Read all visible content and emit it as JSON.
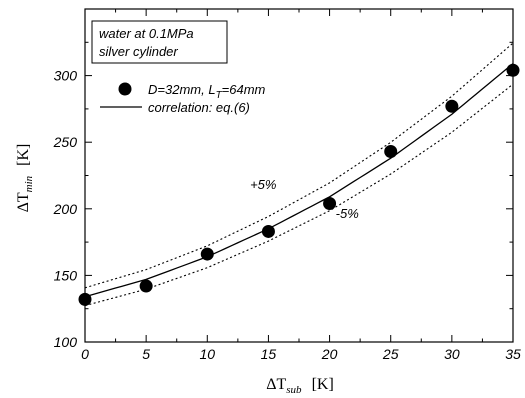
{
  "chart_data": {
    "type": "scatter",
    "xlabel": {
      "symbol": "ΔT",
      "sub": "sub",
      "unit": "[K]"
    },
    "ylabel": {
      "symbol": "ΔT",
      "sub": "min",
      "unit": "[K]"
    },
    "xlim": [
      0,
      35
    ],
    "ylim": [
      100,
      350
    ],
    "xticks": [
      "0",
      "5",
      "10",
      "15",
      "20",
      "25",
      "30",
      "35"
    ],
    "yticks": [
      "100",
      "150",
      "200",
      "250",
      "300"
    ],
    "grid": false,
    "legend_position": "top-left",
    "condition_lines": [
      "water at 0.1MPa",
      "silver cylinder"
    ],
    "series": [
      {
        "name": "D=32mm, L",
        "name_sub": "T",
        "name_suffix": "=64mm",
        "style": "marker-circle-filled",
        "x": [
          0,
          5,
          10,
          15,
          20,
          25,
          30,
          35
        ],
        "y": [
          132,
          142,
          166,
          183,
          204,
          243,
          277,
          304
        ]
      },
      {
        "name": "correlation: eq.(6)",
        "style": "solid-line",
        "x": [
          0,
          5,
          10,
          15,
          20,
          25,
          30,
          35
        ],
        "y": [
          134,
          147,
          164,
          185,
          209,
          238,
          271,
          309
        ]
      }
    ],
    "bands": [
      {
        "label": "+5%",
        "factor": 1.05,
        "style": "dotted",
        "label_x": 13.5,
        "label_y": 215
      },
      {
        "label": "-5%",
        "factor": 0.95,
        "style": "dotted",
        "label_x": 20.5,
        "label_y": 193
      }
    ]
  }
}
